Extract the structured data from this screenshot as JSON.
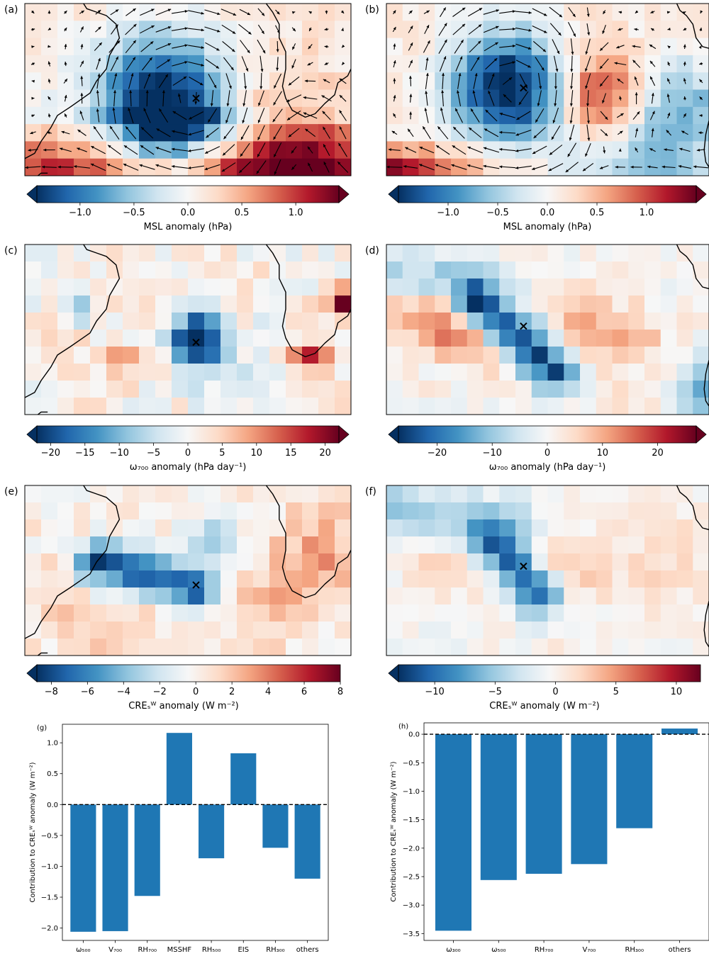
{
  "figure": {
    "maps": [
      {
        "panel": "(a)",
        "field": "msl",
        "cbar": {
          "ticks": [
            -1.0,
            -0.5,
            0.0,
            0.5,
            1.0
          ],
          "ticklabels": [
            "−1.0",
            "−0.5",
            "0.0",
            "0.5",
            "1.0"
          ],
          "range": [
            -1.4,
            1.4
          ],
          "label": "MSL anomaly (hPa)",
          "extend": "both"
        }
      },
      {
        "panel": "(b)",
        "field": "msl",
        "cbar": {
          "ticks": [
            -1.0,
            -0.5,
            0.0,
            0.5,
            1.0
          ],
          "ticklabels": [
            "−1.0",
            "−0.5",
            "0.0",
            "0.5",
            "1.0"
          ],
          "range": [
            -1.5,
            1.5
          ],
          "label": "MSL anomaly (hPa)",
          "extend": "both"
        }
      },
      {
        "panel": "(c)",
        "field": "omega",
        "cbar": {
          "ticks": [
            -20,
            -15,
            -10,
            -5,
            0,
            5,
            10,
            15,
            20
          ],
          "ticklabels": [
            "−20",
            "−15",
            "−10",
            "−5",
            "0",
            "5",
            "10",
            "15",
            "20"
          ],
          "range": [
            -22,
            22
          ],
          "label": "ω₇₀₀ anomaly (hPa day⁻¹)",
          "extend": "both"
        }
      },
      {
        "panel": "(d)",
        "field": "omega",
        "cbar": {
          "ticks": [
            -20,
            -10,
            0,
            10,
            20
          ],
          "ticklabels": [
            "−20",
            "−10",
            "0",
            "10",
            "20"
          ],
          "range": [
            -27,
            27
          ],
          "label": "ω₇₀₀ anomaly (hPa day⁻¹)",
          "extend": "both"
        }
      },
      {
        "panel": "(e)",
        "field": "cre",
        "cbar": {
          "ticks": [
            -8,
            -6,
            -4,
            -2,
            0,
            2,
            4,
            6,
            8
          ],
          "ticklabels": [
            "−8",
            "−6",
            "−4",
            "−2",
            "0",
            "2",
            "4",
            "6",
            "8"
          ],
          "range": [
            -8.8,
            8
          ],
          "label": "CREₛᵂ anomaly (W m⁻²)",
          "extend": "min"
        }
      },
      {
        "panel": "(f)",
        "field": "cre",
        "cbar": {
          "ticks": [
            -10,
            -5,
            0,
            5,
            10
          ],
          "ticklabels": [
            "−10",
            "−5",
            "0",
            "5",
            "10"
          ],
          "range": [
            -13,
            12
          ],
          "label": "CREₛᵂ anomaly (W m⁻²)",
          "extend": "min"
        }
      }
    ],
    "bar_ylabel": "Contribution to CREₛᵂ anomaly (W m⁻²)"
  },
  "chart_data": [
    {
      "type": "heatmap",
      "panel": "(a)",
      "title": "",
      "colorbar_label": "MSL anomaly (hPa)",
      "colorbar_range": [
        -1.4,
        1.4
      ],
      "colormap": "RdBu_r",
      "overlay": "wind anomaly vectors",
      "marker": "×",
      "values": "cyclonic low of about −1.3 hPa centred near the ×, highs of about +1.3 hPa to the south"
    },
    {
      "type": "heatmap",
      "panel": "(b)",
      "title": "",
      "colorbar_label": "MSL anomaly (hPa)",
      "colorbar_range": [
        -1.5,
        1.5
      ],
      "colormap": "RdBu_r",
      "overlay": "wind anomaly vectors",
      "marker": "×",
      "values": "low of about −1.4 hPa near the ×, high of about +0.9 hPa to the east, strong high along the southwest edge"
    },
    {
      "type": "heatmap",
      "panel": "(c)",
      "title": "",
      "colorbar_label": "ω₇₀₀ anomaly (hPa day⁻¹)",
      "colorbar_range": [
        -22,
        22
      ],
      "colormap": "RdBu_r",
      "marker": "×",
      "values": "ascent of about −20 hPa/day at the ×, scattered positive cells up to about +18"
    },
    {
      "type": "heatmap",
      "panel": "(d)",
      "title": "",
      "colorbar_label": "ω₇₀₀ anomaly (hPa day⁻¹)",
      "colorbar_range": [
        -27,
        27
      ],
      "colormap": "RdBu_r",
      "marker": "×",
      "values": "diagonal ascent band of about −25 through the ×, descent of about +15 to the west"
    },
    {
      "type": "heatmap",
      "panel": "(e)",
      "title": "",
      "colorbar_label": "CREₛᵂ anomaly (W m⁻²)",
      "colorbar_range": [
        -8.8,
        8
      ],
      "colormap": "RdBu_r",
      "marker": "×",
      "values": "band of about −8 W m⁻² from the coast to the ×, weak positive elsewhere"
    },
    {
      "type": "heatmap",
      "panel": "(f)",
      "title": "",
      "colorbar_label": "CREₛᵂ anomaly (W m⁻²)",
      "colorbar_range": [
        -13,
        12
      ],
      "colormap": "RdBu_r",
      "marker": "×",
      "values": "minimum of about −12 W m⁻² at the ×, weak positive band to the north"
    },
    {
      "type": "bar",
      "panel": "(g)",
      "categories": [
        "ω₅₀₀",
        "V₇₀₀",
        "RH₇₀₀",
        "MSSHF",
        "RH₅₀₀",
        "EIS",
        "RH₃₀₀",
        "others"
      ],
      "values": [
        -2.06,
        -2.05,
        -1.48,
        1.16,
        -0.87,
        0.83,
        -0.7,
        -1.2
      ],
      "ylabel": "Contribution to CREₛᵂ anomaly (W m⁻²)",
      "xlabel": "",
      "ylim": [
        -2.2,
        1.3
      ],
      "yticks": [
        1.0,
        0.5,
        0.0,
        -0.5,
        -1.0,
        -1.5,
        -2.0
      ],
      "ytick_labels": [
        "1.0",
        "0.5",
        "0.0",
        "−0.5",
        "−1.0",
        "−1.5",
        "−2.0"
      ],
      "color": "#1f77b4",
      "zero_line": "dashed"
    },
    {
      "type": "bar",
      "panel": "(h)",
      "categories": [
        "ω₃₀₀",
        "ω₅₀₀",
        "RH₇₀₀",
        "V₇₀₀",
        "RH₃₀₀",
        "others"
      ],
      "values": [
        -3.45,
        -2.56,
        -2.45,
        -2.28,
        -1.65,
        0.1
      ],
      "ylabel": "Contribution to CREₛᵂ anomaly (W m⁻²)",
      "xlabel": "",
      "ylim": [
        -3.62,
        0.2
      ],
      "yticks": [
        0.0,
        -0.5,
        -1.0,
        -1.5,
        -2.0,
        -2.5,
        -3.0,
        -3.5
      ],
      "ytick_labels": [
        "0.0",
        "−0.5",
        "−1.0",
        "−1.5",
        "−2.0",
        "−2.5",
        "−3.0",
        "−3.5"
      ],
      "color": "#1f77b4",
      "zero_line": "dashed"
    }
  ]
}
